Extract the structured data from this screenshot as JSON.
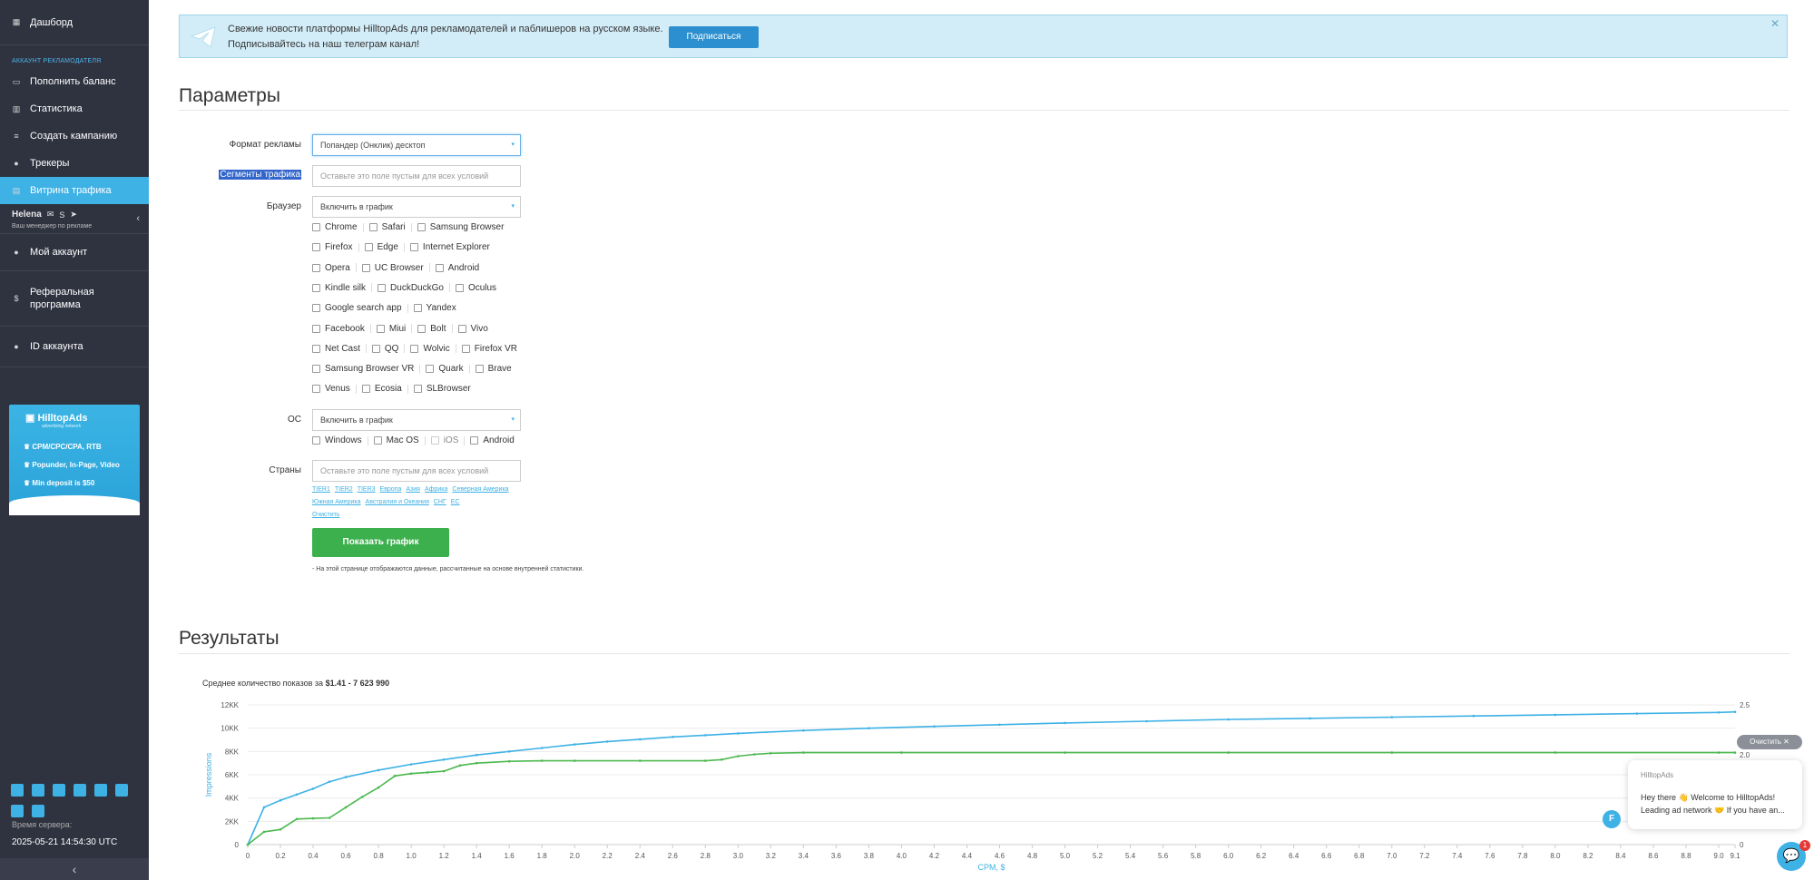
{
  "sidebar": {
    "dashboard": "Дашборд",
    "section": "АККАУНТ РЕКЛАМОДАТЕЛЯ",
    "items": [
      "Пополнить баланс",
      "Статистика",
      "Создать кампанию",
      "Трекеры",
      "Витрина трафика"
    ],
    "manager_name": "Helena",
    "manager_sub": "Ваш менеджер по рекламе",
    "my_account": "Мой аккаунт",
    "referral": "Реферальная программа",
    "account_id": "ID аккаунта",
    "banner": {
      "logo": "HilltopAds",
      "logo_sub": "advertising network",
      "line1": "CPM/CPC/CPA, RTB",
      "line2": "Popunder, In-Page, Video",
      "line3": "Min deposit is $50"
    },
    "server_time_label": "Время сервера:",
    "server_time": "2025-05-21 14:54:30 UTC",
    "collapse": "‹"
  },
  "telegram": {
    "line1": "Свежие новости платформы HilltopAds для рекламодателей и паблишеров на русском языке.",
    "line2": "Подписывайтесь на наш телеграм канал!",
    "button": "Подписаться",
    "close": "✕"
  },
  "params": {
    "title": "Параметры",
    "format_label": "Формат рекламы",
    "format_value": "Попандер (Онклик) десктоп",
    "segments_label": "Сегменты трафика",
    "segments_placeholder": "Оставьте это поле пустым для всех условий",
    "browser_label": "Браузер",
    "browser_value": "Включить в график",
    "browsers": [
      [
        "Chrome",
        "Safari",
        "Samsung Browser"
      ],
      [
        "Firefox",
        "Edge",
        "Internet Explorer"
      ],
      [
        "Opera",
        "UC Browser",
        "Android"
      ],
      [
        "Kindle silk",
        "DuckDuckGo",
        "Oculus"
      ],
      [
        "Google search app",
        "Yandex"
      ],
      [
        "Facebook",
        "Miui",
        "Bolt",
        "Vivo"
      ],
      [
        "Net Cast",
        "QQ",
        "Wolvic",
        "Firefox VR"
      ],
      [
        "Samsung Browser VR",
        "Quark",
        "Brave"
      ],
      [
        "Venus",
        "Ecosia",
        "SLBrowser"
      ]
    ],
    "os_label": "ОС",
    "os_value": "Включить в график",
    "os_list": [
      "Windows",
      "Mac OS",
      "iOS",
      "Android"
    ],
    "countries_label": "Страны",
    "countries_placeholder": "Оставьте это поле пустым для всех условий",
    "country_links_1": [
      "TIER1",
      "TIER2",
      "TIER3",
      "Европа",
      "Азия",
      "Африка",
      "Северная Америка"
    ],
    "country_links_2": [
      "Южная Америка",
      "Австралия и Океания",
      "СНГ",
      "ЕС"
    ],
    "clear_link": "Очистить",
    "show_button": "Показать график",
    "note": "- На этой странице отображаются данные, рассчитанные на основе внутренней статистики."
  },
  "results": {
    "title": "Результаты",
    "avg_prefix": "Среднее количество показов за",
    "avg_value": "$1.41 - 7 623 990"
  },
  "chart_data": {
    "type": "line",
    "xlabel": "CPM, $",
    "ylabel": "Impressions",
    "x_ticks": [
      "0",
      "0.2",
      "0.4",
      "0.6",
      "0.8",
      "1.0",
      "1.2",
      "1.4",
      "1.6",
      "1.8",
      "2.0",
      "2.2",
      "2.4",
      "2.6",
      "2.8",
      "3.0",
      "3.2",
      "3.4",
      "3.6",
      "3.8",
      "4.0",
      "4.2",
      "4.4",
      "4.6",
      "4.8",
      "5.0",
      "5.2",
      "5.4",
      "5.6",
      "5.8",
      "6.0",
      "6.2",
      "6.4",
      "6.6",
      "6.8",
      "7.0",
      "7.2",
      "7.4",
      "7.6",
      "7.8",
      "8.0",
      "8.2",
      "8.4",
      "8.6",
      "8.8",
      "9.0",
      "9.1"
    ],
    "y_ticks": [
      "0",
      "2KK",
      "4KK",
      "6KK",
      "8KK",
      "10KK",
      "12KK"
    ],
    "y2_ticks": [
      "0",
      "1.5",
      "2.0",
      "2.5"
    ],
    "ylim": [
      0,
      12000000
    ],
    "xlim": [
      0,
      9.1
    ],
    "colors": {
      "blue": "#3eb1e5",
      "green": "#4cb84f"
    },
    "series": [
      {
        "color": "blue",
        "x": [
          0,
          0.1,
          0.2,
          0.3,
          0.4,
          0.5,
          0.6,
          0.8,
          1.0,
          1.2,
          1.4,
          1.6,
          1.8,
          2.0,
          2.2,
          2.4,
          2.6,
          2.8,
          3.0,
          3.4,
          3.8,
          4.2,
          4.6,
          5.0,
          5.5,
          6.0,
          6.5,
          7.0,
          7.5,
          8.0,
          8.5,
          9.0,
          9.1
        ],
        "y": [
          0,
          3200000,
          3800000,
          4300000,
          4800000,
          5400000,
          5800000,
          6400000,
          6900000,
          7300000,
          7700000,
          8000000,
          8300000,
          8600000,
          8850000,
          9050000,
          9250000,
          9400000,
          9550000,
          9800000,
          10000000,
          10150000,
          10300000,
          10450000,
          10600000,
          10750000,
          10850000,
          10950000,
          11050000,
          11150000,
          11250000,
          11350000,
          11400000
        ]
      },
      {
        "color": "green",
        "x": [
          0,
          0.1,
          0.2,
          0.3,
          0.4,
          0.5,
          0.6,
          0.7,
          0.8,
          0.9,
          1.0,
          1.1,
          1.2,
          1.3,
          1.4,
          1.6,
          1.8,
          2.0,
          2.4,
          2.8,
          2.9,
          3.0,
          3.1,
          3.2,
          3.4,
          4.0,
          5.0,
          6.0,
          7.0,
          8.0,
          9.0,
          9.1
        ],
        "y": [
          0,
          1100000,
          1300000,
          2200000,
          2250000,
          2300000,
          3200000,
          4100000,
          4900000,
          5900000,
          6100000,
          6200000,
          6300000,
          6800000,
          7000000,
          7150000,
          7200000,
          7200000,
          7200000,
          7200000,
          7300000,
          7600000,
          7750000,
          7850000,
          7900000,
          7900000,
          7900000,
          7900000,
          7900000,
          7900000,
          7900000,
          7900000
        ]
      }
    ]
  },
  "chat": {
    "clear": "Очистить ✕",
    "brand": "HilltopAds",
    "msg1": "Hey there 👋 Welcome to HilltopAds!",
    "msg2": "Leading ad network 🤝 If you have an...",
    "avatar": "F",
    "badge": "1"
  }
}
